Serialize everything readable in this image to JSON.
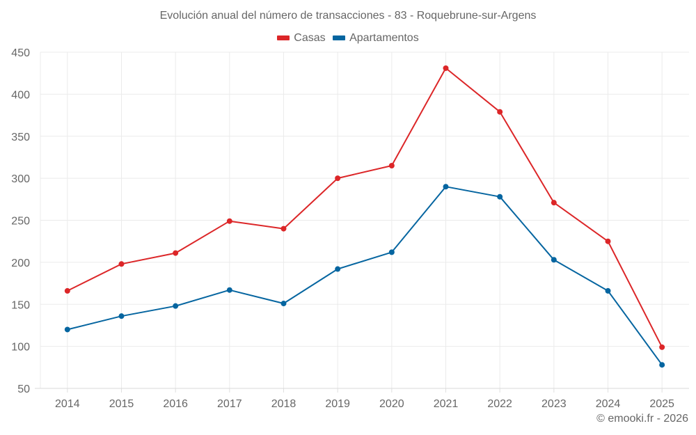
{
  "chart_data": {
    "type": "line",
    "title": "Evolución anual del número de transacciones - 83 - Roquebrune-sur-Argens",
    "xlabel": "",
    "ylabel": "",
    "categories": [
      "2014",
      "2015",
      "2016",
      "2017",
      "2018",
      "2019",
      "2020",
      "2021",
      "2022",
      "2023",
      "2024",
      "2025"
    ],
    "ylim": [
      50,
      450
    ],
    "yticks": [
      50,
      100,
      150,
      200,
      250,
      300,
      350,
      400,
      450
    ],
    "grid": true,
    "legend_position": "top-center",
    "series": [
      {
        "name": "Casas",
        "color": "#dc2628",
        "values": [
          166,
          198,
          211,
          249,
          240,
          300,
          315,
          431,
          379,
          271,
          225,
          99
        ]
      },
      {
        "name": "Apartamentos",
        "color": "#0565a0",
        "values": [
          120,
          136,
          148,
          167,
          151,
          192,
          212,
          290,
          278,
          203,
          166,
          78
        ]
      }
    ]
  },
  "credit": "© emooki.fr - 2026"
}
